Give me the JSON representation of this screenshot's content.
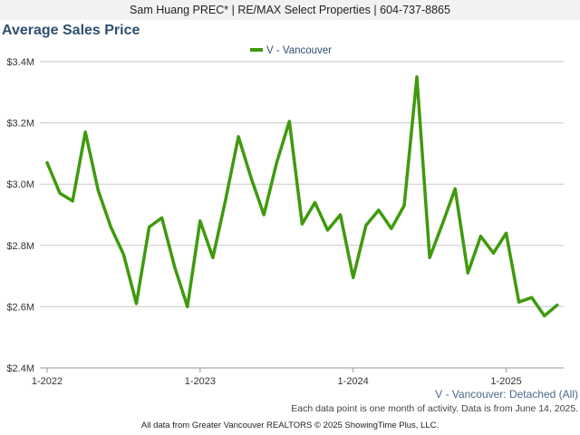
{
  "header": {
    "agent_line": "Sam Huang PREC* | RE/MAX Select Properties | 604-737-8865"
  },
  "colors": {
    "series": "#3f9a0e",
    "grid": "#c8c8c8",
    "title": "#2f4f6f"
  },
  "chart_data": {
    "type": "line",
    "title": "Average Sales Price",
    "series": [
      {
        "name": "V - Vancouver",
        "x": [
          "2022-01",
          "2022-02",
          "2022-03",
          "2022-04",
          "2022-05",
          "2022-06",
          "2022-07",
          "2022-08",
          "2022-09",
          "2022-10",
          "2022-11",
          "2022-12",
          "2023-01",
          "2023-02",
          "2023-03",
          "2023-04",
          "2023-05",
          "2023-06",
          "2023-07",
          "2023-08",
          "2023-09",
          "2023-10",
          "2023-11",
          "2023-12",
          "2024-01",
          "2024-02",
          "2024-03",
          "2024-04",
          "2024-05",
          "2024-06",
          "2024-07",
          "2024-08",
          "2024-09",
          "2024-10",
          "2024-11",
          "2024-12",
          "2025-01",
          "2025-02",
          "2025-03",
          "2025-04",
          "2025-05"
        ],
        "values": [
          3.07,
          2.97,
          2.945,
          3.17,
          2.98,
          2.86,
          2.77,
          2.61,
          2.86,
          2.89,
          2.73,
          2.6,
          2.88,
          2.76,
          2.95,
          3.155,
          3.02,
          2.9,
          3.07,
          3.205,
          2.87,
          2.94,
          2.85,
          2.9,
          2.695,
          2.865,
          2.915,
          2.855,
          2.93,
          3.35,
          2.76,
          2.87,
          2.985,
          2.71,
          2.83,
          2.775,
          2.84,
          2.615,
          2.63,
          2.57,
          2.605
        ]
      }
    ],
    "ylim": [
      2.4,
      3.4
    ],
    "yticks": [
      {
        "value": 3.4,
        "label": "$3.4M"
      },
      {
        "value": 3.2,
        "label": "$3.2M"
      },
      {
        "value": 3.0,
        "label": "$3.0M"
      },
      {
        "value": 2.8,
        "label": "$2.8M"
      },
      {
        "value": 2.6,
        "label": "$2.6M"
      },
      {
        "value": 2.4,
        "label": "$2.4M"
      }
    ],
    "xticks": [
      {
        "index": 0,
        "label": "1-2022"
      },
      {
        "index": 12,
        "label": "1-2023"
      },
      {
        "index": 24,
        "label": "1-2024"
      },
      {
        "index": 36,
        "label": "1-2025"
      }
    ],
    "grid": "horizontal",
    "legend": "top-center"
  },
  "notes": {
    "series_label": "V - Vancouver: Detached (All)",
    "activity_note": "Each data point is one month of activity. Data is from June 14, 2025.",
    "footer": "All data from Greater Vancouver REALTORS © 2025 ShowingTime Plus, LLC."
  }
}
